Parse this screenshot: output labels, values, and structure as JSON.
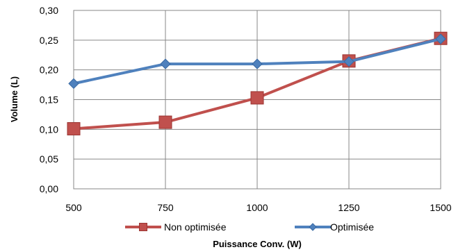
{
  "chart_data": {
    "type": "line",
    "x": [
      500,
      750,
      1000,
      1250,
      1500
    ],
    "xticklabels": [
      "500",
      "750",
      "1000",
      "1250",
      "1500"
    ],
    "yticks": [
      0,
      0.05,
      0.1,
      0.15,
      0.2,
      0.25,
      0.3
    ],
    "yticklabels": [
      "0,00",
      "0,05",
      "0,10",
      "0,15",
      "0,20",
      "0,25",
      "0,30"
    ],
    "ylim": [
      0,
      0.3
    ],
    "xlabel": "Puissance Conv. (W)",
    "ylabel": "Volume (L)",
    "grid": true,
    "legend_position": "bottom",
    "series": [
      {
        "name": "Non optimisée",
        "values": [
          0.101,
          0.112,
          0.153,
          0.215,
          0.253
        ],
        "color": "#c0504d",
        "marker": "square"
      },
      {
        "name": "Optimisée",
        "values": [
          0.177,
          0.21,
          0.21,
          0.214,
          0.252
        ],
        "color": "#4f81bd",
        "marker": "diamond"
      }
    ]
  }
}
